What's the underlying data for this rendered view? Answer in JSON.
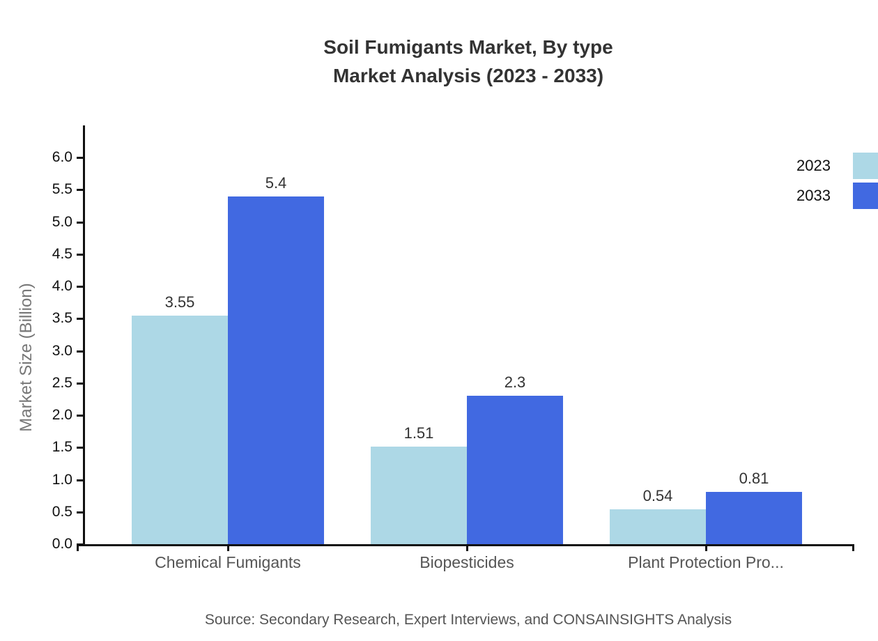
{
  "chart_data": {
    "type": "bar",
    "title": "Soil Fumigants Market, By type",
    "subtitle": "Market Analysis (2023 - 2033)",
    "ylabel": "Market Size (Billion)",
    "xlabel": "",
    "categories": [
      "Chemical Fumigants",
      "Biopesticides",
      "Plant Protection Pro..."
    ],
    "series": [
      {
        "name": "2023",
        "color": "#ADD8E6",
        "values": [
          3.55,
          1.51,
          0.54
        ]
      },
      {
        "name": "2033",
        "color": "#4169E1",
        "values": [
          5.4,
          2.3,
          0.81
        ]
      }
    ],
    "yticks": [
      "0.0",
      "0.5",
      "1.0",
      "1.5",
      "2.0",
      "2.5",
      "3.0",
      "3.5",
      "4.0",
      "4.5",
      "5.0",
      "5.5",
      "6.0"
    ],
    "ylim": [
      0,
      6.5
    ],
    "grid": false,
    "legend_position": "top-right",
    "source": "Source: Secondary Research, Expert Interviews, and CONSAINSIGHTS Analysis"
  }
}
